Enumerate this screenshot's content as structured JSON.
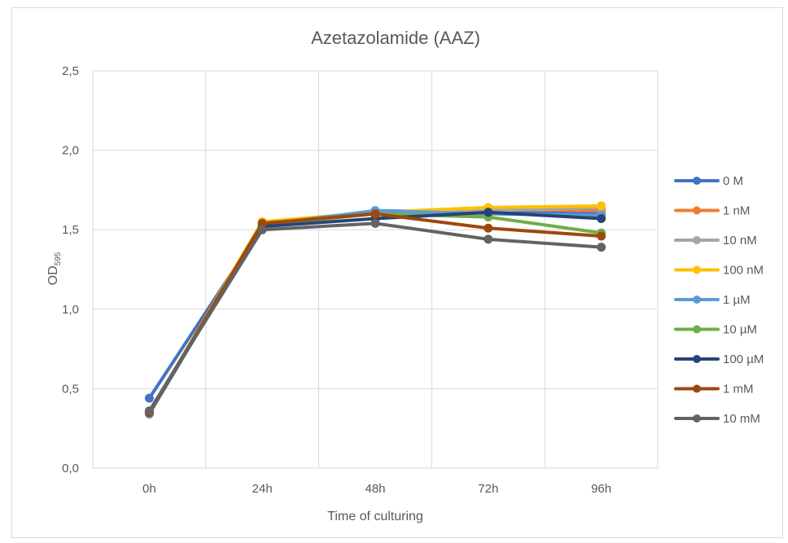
{
  "chart_data": {
    "type": "line",
    "title": "Azetazolamide (AAZ)",
    "xlabel": "Time of culturing",
    "ylabel": {
      "main": "OD",
      "sub": "595"
    },
    "categories": [
      "0h",
      "24h",
      "48h",
      "72h",
      "96h"
    ],
    "ylim": [
      0,
      2.5
    ],
    "yticks": [
      "0,0",
      "0,5",
      "1,0",
      "1,5",
      "2,0",
      "2,5"
    ],
    "grid": true,
    "legend_position": "right",
    "series": [
      {
        "name": "0 M",
        "color": "#4472C4",
        "values": [
          0.44,
          1.52,
          1.62,
          1.61,
          1.6
        ]
      },
      {
        "name": "1 nM",
        "color": "#ED7D31",
        "values": [
          0.35,
          1.55,
          1.61,
          1.63,
          1.62
        ]
      },
      {
        "name": "10 nM",
        "color": "#A5A5A5",
        "values": [
          0.35,
          1.54,
          1.6,
          1.62,
          1.64
        ]
      },
      {
        "name": "100 nM",
        "color": "#FFC000",
        "values": [
          0.35,
          1.55,
          1.61,
          1.64,
          1.65
        ]
      },
      {
        "name": "1 µM",
        "color": "#5B9BD5",
        "values": [
          0.34,
          1.53,
          1.62,
          1.6,
          1.59
        ]
      },
      {
        "name": "10 µM",
        "color": "#70AD47",
        "values": [
          0.35,
          1.53,
          1.6,
          1.58,
          1.48
        ]
      },
      {
        "name": "100 µM",
        "color": "#264478",
        "values": [
          0.35,
          1.52,
          1.57,
          1.61,
          1.57
        ]
      },
      {
        "name": "1 mM",
        "color": "#9E480E",
        "values": [
          0.35,
          1.54,
          1.6,
          1.51,
          1.46
        ]
      },
      {
        "name": "10 mM",
        "color": "#636363",
        "values": [
          0.36,
          1.5,
          1.54,
          1.44,
          1.39
        ]
      }
    ]
  }
}
